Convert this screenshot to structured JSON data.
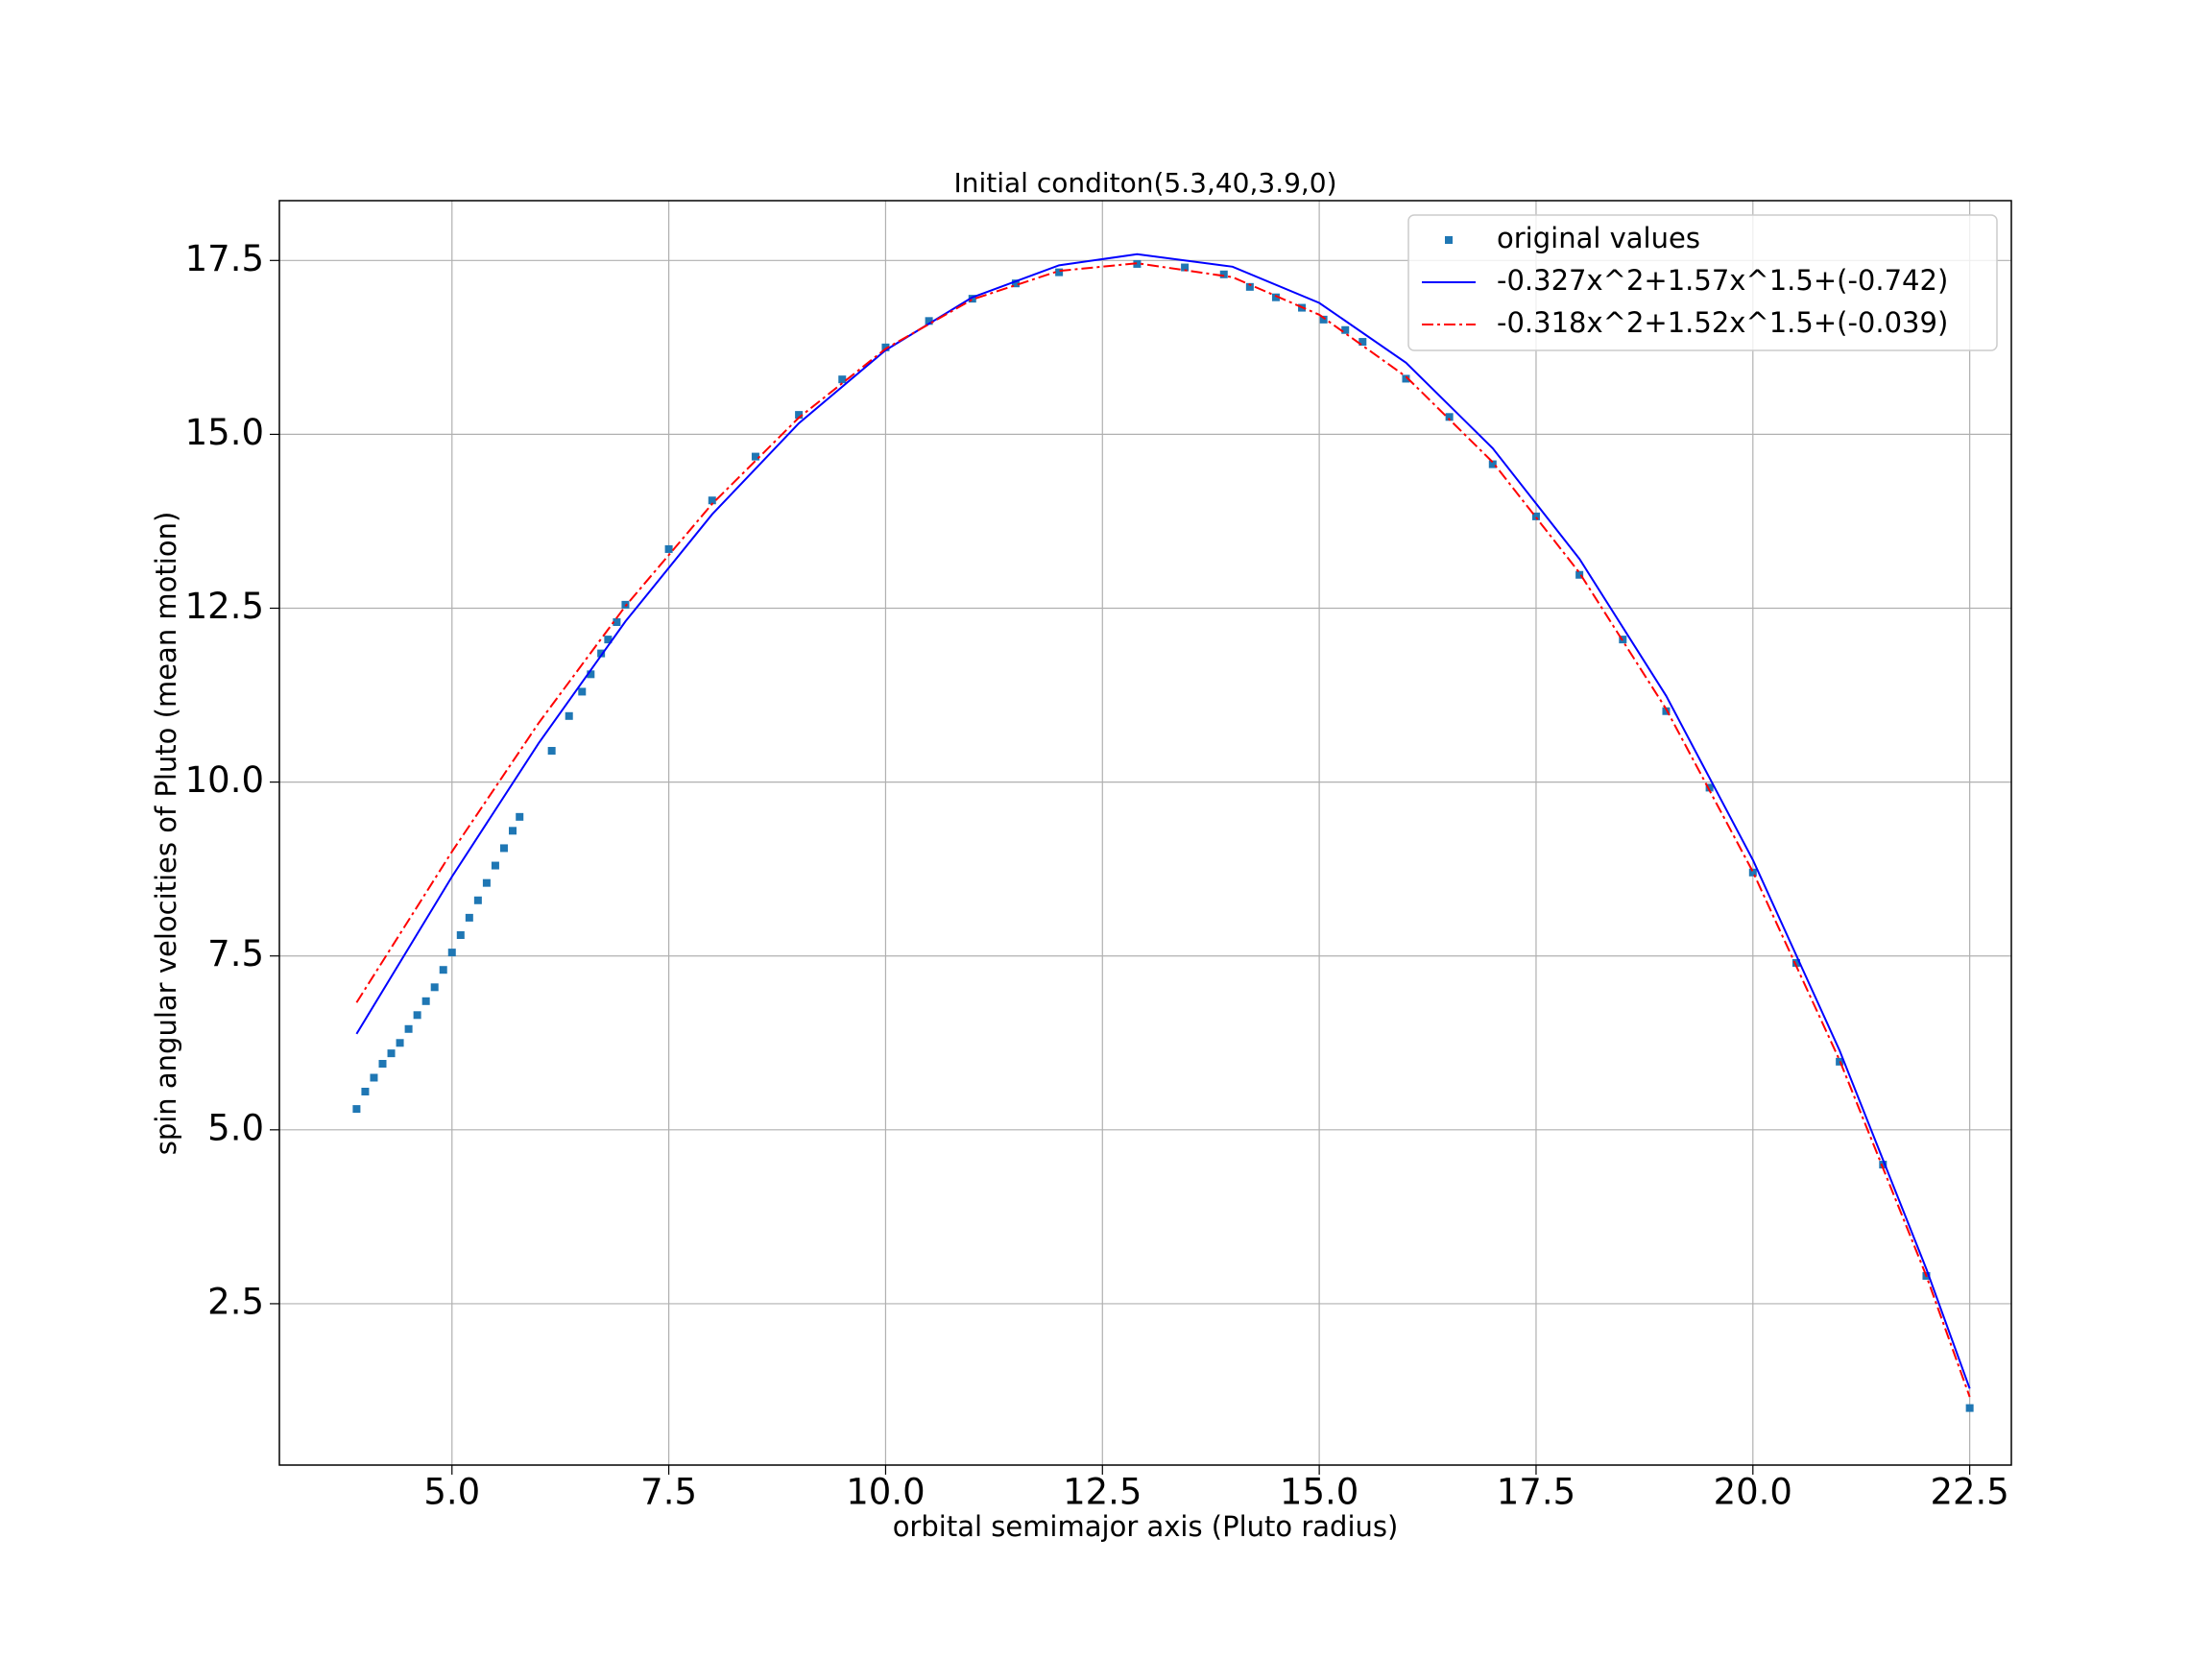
{
  "chart_data": {
    "type": "scatter",
    "title": "Initial conditon(5.3,40,3.9,0)",
    "x_label": "orbital semimajor axis (Pluto radius)",
    "y_label": "spin angular velocities of Pluto (mean motion)",
    "xlim": [
      3.01,
      22.98
    ],
    "ylim": [
      0.18,
      18.36
    ],
    "xticks": [
      {
        "value": 5,
        "label": "5.0"
      },
      7.5,
      {
        "value": 10,
        "label": "10.0"
      },
      12.5,
      {
        "value": 15,
        "label": "15.0"
      },
      17.5,
      {
        "value": 20,
        "label": "20.0"
      },
      22.5
    ],
    "yticks": [
      2.5,
      {
        "value": 5,
        "label": "5.0"
      },
      7.5,
      {
        "value": 10,
        "label": "10.0"
      },
      12.5,
      {
        "value": 15,
        "label": "15.0"
      },
      17.5
    ],
    "grid": true,
    "legend": "upper right",
    "series": [
      {
        "name": "original values",
        "type": "scatter",
        "color": "#1f77b4",
        "x": [
          3.9,
          4.0,
          4.1,
          4.2,
          4.3,
          4.4,
          4.5,
          4.6,
          4.7,
          4.8,
          4.9,
          5.0,
          5.1,
          5.2,
          5.3,
          5.4,
          5.5,
          5.6,
          5.7,
          5.78,
          6.15,
          6.35,
          6.5,
          6.6,
          6.72,
          6.8,
          6.9,
          7.0,
          7.5,
          8,
          8.5,
          9,
          9.5,
          10,
          10.5,
          11,
          11.5,
          12,
          12.9,
          13.45,
          13.9,
          14.2,
          14.5,
          14.8,
          15.05,
          15.3,
          15.5,
          16,
          16.5,
          17,
          17.5,
          18,
          18.5,
          19,
          19.5,
          20,
          20.5,
          21,
          21.5,
          22,
          22.5
        ],
        "values": [
          5.3,
          5.55,
          5.75,
          5.95,
          6.1,
          6.25,
          6.45,
          6.65,
          6.85,
          7.05,
          7.3,
          7.55,
          7.8,
          8.05,
          8.3,
          8.55,
          8.8,
          9.05,
          9.3,
          9.5,
          10.45,
          10.95,
          11.3,
          11.55,
          11.85,
          12.05,
          12.3,
          12.55,
          13.35,
          14.05,
          14.68,
          15.28,
          15.79,
          16.25,
          16.63,
          16.95,
          17.17,
          17.33,
          17.45,
          17.4,
          17.3,
          17.12,
          16.97,
          16.82,
          16.65,
          16.5,
          16.33,
          15.8,
          15.25,
          14.57,
          13.82,
          12.98,
          12.05,
          11.02,
          9.92,
          8.7,
          7.4,
          5.98,
          4.5,
          2.9,
          1.0
        ]
      },
      {
        "name": "-0.327x^2+1.57x^1.5+(-0.742)",
        "type": "line",
        "style": "solid",
        "color": "#0000ff",
        "x": [
          3.9,
          5,
          6,
          7,
          8,
          9,
          10,
          11,
          12,
          12.9,
          14,
          15,
          16,
          17,
          18,
          19,
          20,
          21,
          22,
          22.5
        ],
        "values": [
          6.38,
          8.64,
          10.56,
          12.31,
          13.85,
          15.16,
          16.21,
          16.97,
          17.43,
          17.59,
          17.41,
          16.89,
          16.03,
          14.8,
          13.21,
          11.24,
          8.88,
          6.14,
          3.0,
          1.28
        ]
      },
      {
        "name": "-0.318x^2+1.52x^1.5+(-0.039)",
        "type": "line",
        "style": "dashdot",
        "color": "#ff0000",
        "x": [
          3.9,
          5,
          6,
          7,
          8,
          9,
          10,
          11,
          12,
          12.9,
          14,
          15,
          16,
          17,
          18,
          19,
          20,
          21,
          22,
          22.5
        ],
        "values": [
          6.83,
          9.0,
          10.85,
          12.53,
          14.0,
          15.24,
          16.23,
          16.94,
          17.35,
          17.46,
          17.26,
          16.72,
          15.83,
          14.6,
          13.01,
          11.05,
          8.71,
          6.0,
          2.9,
          1.16
        ]
      }
    ]
  }
}
